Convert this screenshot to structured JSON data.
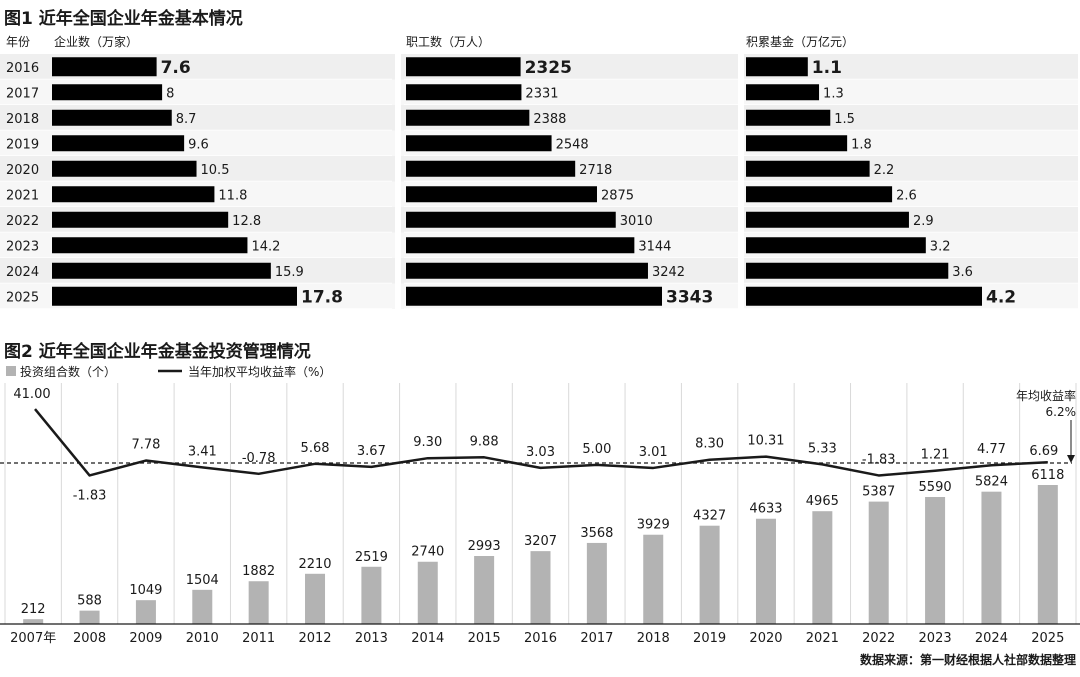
{
  "fig1": {
    "title": "图1 近年全国企业年金基本情况",
    "year_header": "年份"
  },
  "fig2": {
    "title": "图2 近年全国企业年金基金投资管理情况",
    "annotation_line1": "年均收益率",
    "annotation_line2": "6.2%"
  },
  "source": "数据来源：第一财经根据人社部数据整理",
  "chart_data": [
    {
      "type": "bar",
      "orientation": "horizontal",
      "title": "图1 近年全国企业年金基本情况",
      "categories": [
        "2016",
        "2017",
        "2018",
        "2019",
        "2020",
        "2021",
        "2022",
        "2023",
        "2024",
        "2025"
      ],
      "series": [
        {
          "name": "企业数（万家）",
          "values": [
            7.6,
            8,
            8.7,
            9.6,
            10.5,
            11.8,
            12.8,
            14.2,
            15.9,
            17.8
          ]
        },
        {
          "name": "职工数（万人）",
          "values": [
            2325,
            2331,
            2388,
            2548,
            2718,
            2875,
            3010,
            3144,
            3242,
            3343
          ]
        },
        {
          "name": "积累基金（万亿元）",
          "values": [
            1.1,
            1.3,
            1.5,
            1.8,
            2.2,
            2.6,
            2.9,
            3.2,
            3.6,
            4.2
          ]
        }
      ],
      "grid": false
    },
    {
      "type": "bar",
      "title": "图2 近年全国企业年金基金投资管理情况",
      "x": [
        "2007年",
        "2008",
        "2009",
        "2010",
        "2011",
        "2012",
        "2013",
        "2014",
        "2015",
        "2016",
        "2017",
        "2018",
        "2019",
        "2020",
        "2021",
        "2022",
        "2023",
        "2024",
        "2025"
      ],
      "series": [
        {
          "name": "投资组合数（个）",
          "type": "bar",
          "color": "#b3b3b3",
          "values": [
            212,
            588,
            1049,
            1504,
            1882,
            2210,
            2519,
            2740,
            2993,
            3207,
            3568,
            3929,
            4327,
            4633,
            4965,
            5387,
            5590,
            5824,
            6118
          ]
        },
        {
          "name": "当年加权平均收益率（%）",
          "type": "line",
          "color": "#1a1a1a",
          "values": [
            41.0,
            -1.83,
            7.78,
            3.41,
            -0.78,
            5.68,
            3.67,
            9.3,
            9.88,
            3.03,
            5.0,
            3.01,
            8.3,
            10.31,
            5.33,
            -1.83,
            1.21,
            4.77,
            6.69
          ]
        }
      ],
      "reference_line": {
        "value": 6.2,
        "style": "dashed"
      },
      "legend_position": "top-left",
      "grid": "vertical"
    }
  ]
}
